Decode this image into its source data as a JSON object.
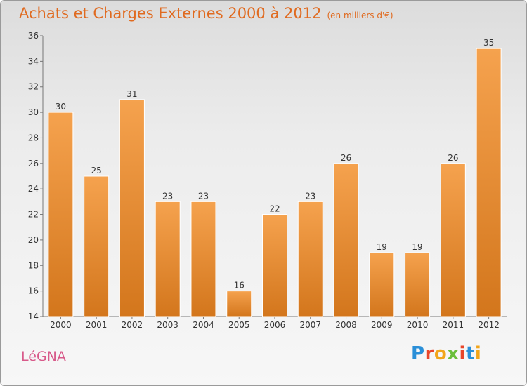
{
  "header": {
    "title": "Achats et Charges Externes 2000 à 2012",
    "unit": "(en milliers d'€)"
  },
  "footer": {
    "commune": "LéGNA",
    "brand": "Proxiti"
  },
  "colors": {
    "bar_light": "#f5a24e",
    "bar_dark": "#d3761c",
    "title": "#e06a1f",
    "commune": "#d85a8a"
  },
  "chart_data": {
    "type": "bar",
    "title": "Achats et Charges Externes 2000 à 2012",
    "subtitle": "(en milliers d'€)",
    "categories": [
      "2000",
      "2001",
      "2002",
      "2003",
      "2004",
      "2005",
      "2006",
      "2007",
      "2008",
      "2009",
      "2010",
      "2011",
      "2012"
    ],
    "values": [
      30,
      25,
      31,
      23,
      23,
      16,
      22,
      23,
      26,
      19,
      19,
      26,
      35
    ],
    "ylim": [
      14,
      36
    ],
    "yticks": [
      14,
      16,
      18,
      20,
      22,
      24,
      26,
      28,
      30,
      32,
      34,
      36
    ],
    "xlabel": "",
    "ylabel": "",
    "grid": false
  }
}
